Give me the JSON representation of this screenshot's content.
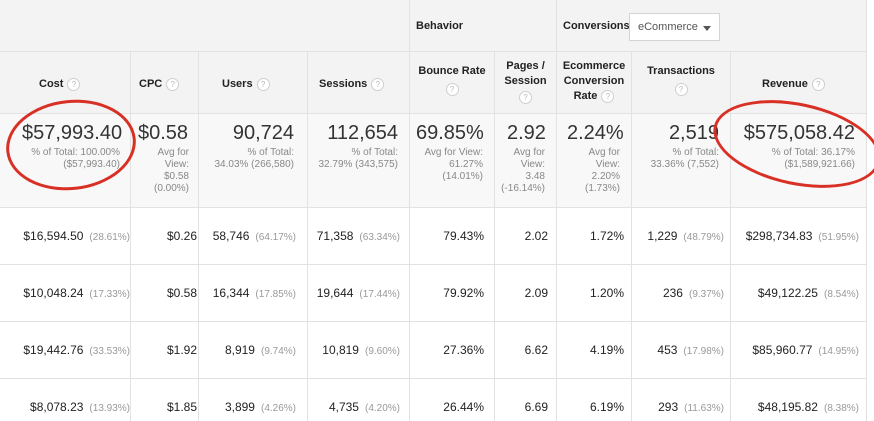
{
  "group_header": {
    "behavior": "Behavior",
    "conversions_label": "Conversions",
    "conversions_select": "eCommerce"
  },
  "columns": {
    "cost": "Cost",
    "cpc": "CPC",
    "users": "Users",
    "sessions": "Sessions",
    "bounce_rate": "Bounce Rate",
    "pages_session_1": "Pages /",
    "pages_session_2": "Session",
    "ecr_1": "Ecommerce",
    "ecr_2": "Conversion",
    "ecr_3": "Rate",
    "transactions": "Transactions",
    "revenue": "Revenue",
    "help": "?"
  },
  "summary": {
    "cost": {
      "value": "$57,993.40",
      "l1": "% of Total: 100.00%",
      "l2": "($57,993.40)"
    },
    "cpc": {
      "value": "$0.58",
      "l1": "Avg for",
      "l2": "View:",
      "l3": "$0.58",
      "l4": "(0.00%)"
    },
    "users": {
      "value": "90,724",
      "l1": "% of Total:",
      "l2": "34.03% (266,580)"
    },
    "sessions": {
      "value": "112,654",
      "l1": "% of Total:",
      "l2": "32.79% (343,575)"
    },
    "bounce_rate": {
      "value": "69.85%",
      "l1": "Avg for View:",
      "l2": "61.27%",
      "l3": "(14.01%)"
    },
    "pages_session": {
      "value": "2.92",
      "l1": "Avg for",
      "l2": "View:",
      "l3": "3.48",
      "l4": "(-16.14%)"
    },
    "ecr": {
      "value": "2.24%",
      "l1": "Avg for",
      "l2": "View:",
      "l3": "2.20%",
      "l4": "(1.73%)"
    },
    "transactions": {
      "value": "2,519",
      "l1": "% of Total:",
      "l2": "33.36% (7,552)"
    },
    "revenue": {
      "value": "$575,058.42",
      "l1": "% of Total: 36.17%",
      "l2": "($1,589,921.66)"
    }
  },
  "rows": [
    {
      "cost": "$16,594.50",
      "cost_pct": "(28.61%)",
      "cpc": "$0.26",
      "users": "58,746",
      "users_pct": "(64.17%)",
      "sessions": "71,358",
      "sessions_pct": "(63.34%)",
      "bounce": "79.43%",
      "pages": "2.02",
      "ecr": "1.72%",
      "trans": "1,229",
      "trans_pct": "(48.79%)",
      "revenue": "$298,734.83",
      "revenue_pct": "(51.95%)"
    },
    {
      "cost": "$10,048.24",
      "cost_pct": "(17.33%)",
      "cpc": "$0.58",
      "users": "16,344",
      "users_pct": "(17.85%)",
      "sessions": "19,644",
      "sessions_pct": "(17.44%)",
      "bounce": "79.92%",
      "pages": "2.09",
      "ecr": "1.20%",
      "trans": "236",
      "trans_pct": "(9.37%)",
      "revenue": "$49,122.25",
      "revenue_pct": "(8.54%)"
    },
    {
      "cost": "$19,442.76",
      "cost_pct": "(33.53%)",
      "cpc": "$1.92",
      "users": "8,919",
      "users_pct": "(9.74%)",
      "sessions": "10,819",
      "sessions_pct": "(9.60%)",
      "bounce": "27.36%",
      "pages": "6.62",
      "ecr": "4.19%",
      "trans": "453",
      "trans_pct": "(17.98%)",
      "revenue": "$85,960.77",
      "revenue_pct": "(14.95%)"
    },
    {
      "cost": "$8,078.23",
      "cost_pct": "(13.93%)",
      "cpc": "$1.85",
      "users": "3,899",
      "users_pct": "(4.26%)",
      "sessions": "4,735",
      "sessions_pct": "(4.20%)",
      "bounce": "26.44%",
      "pages": "6.69",
      "ecr": "6.19%",
      "trans": "293",
      "trans_pct": "(11.63%)",
      "revenue": "$48,195.82",
      "revenue_pct": "(8.38%)"
    }
  ],
  "colors": {
    "annotation": "#d93025",
    "header_bg": "#f3f3f3",
    "summary_bg": "#f8f8f8"
  }
}
